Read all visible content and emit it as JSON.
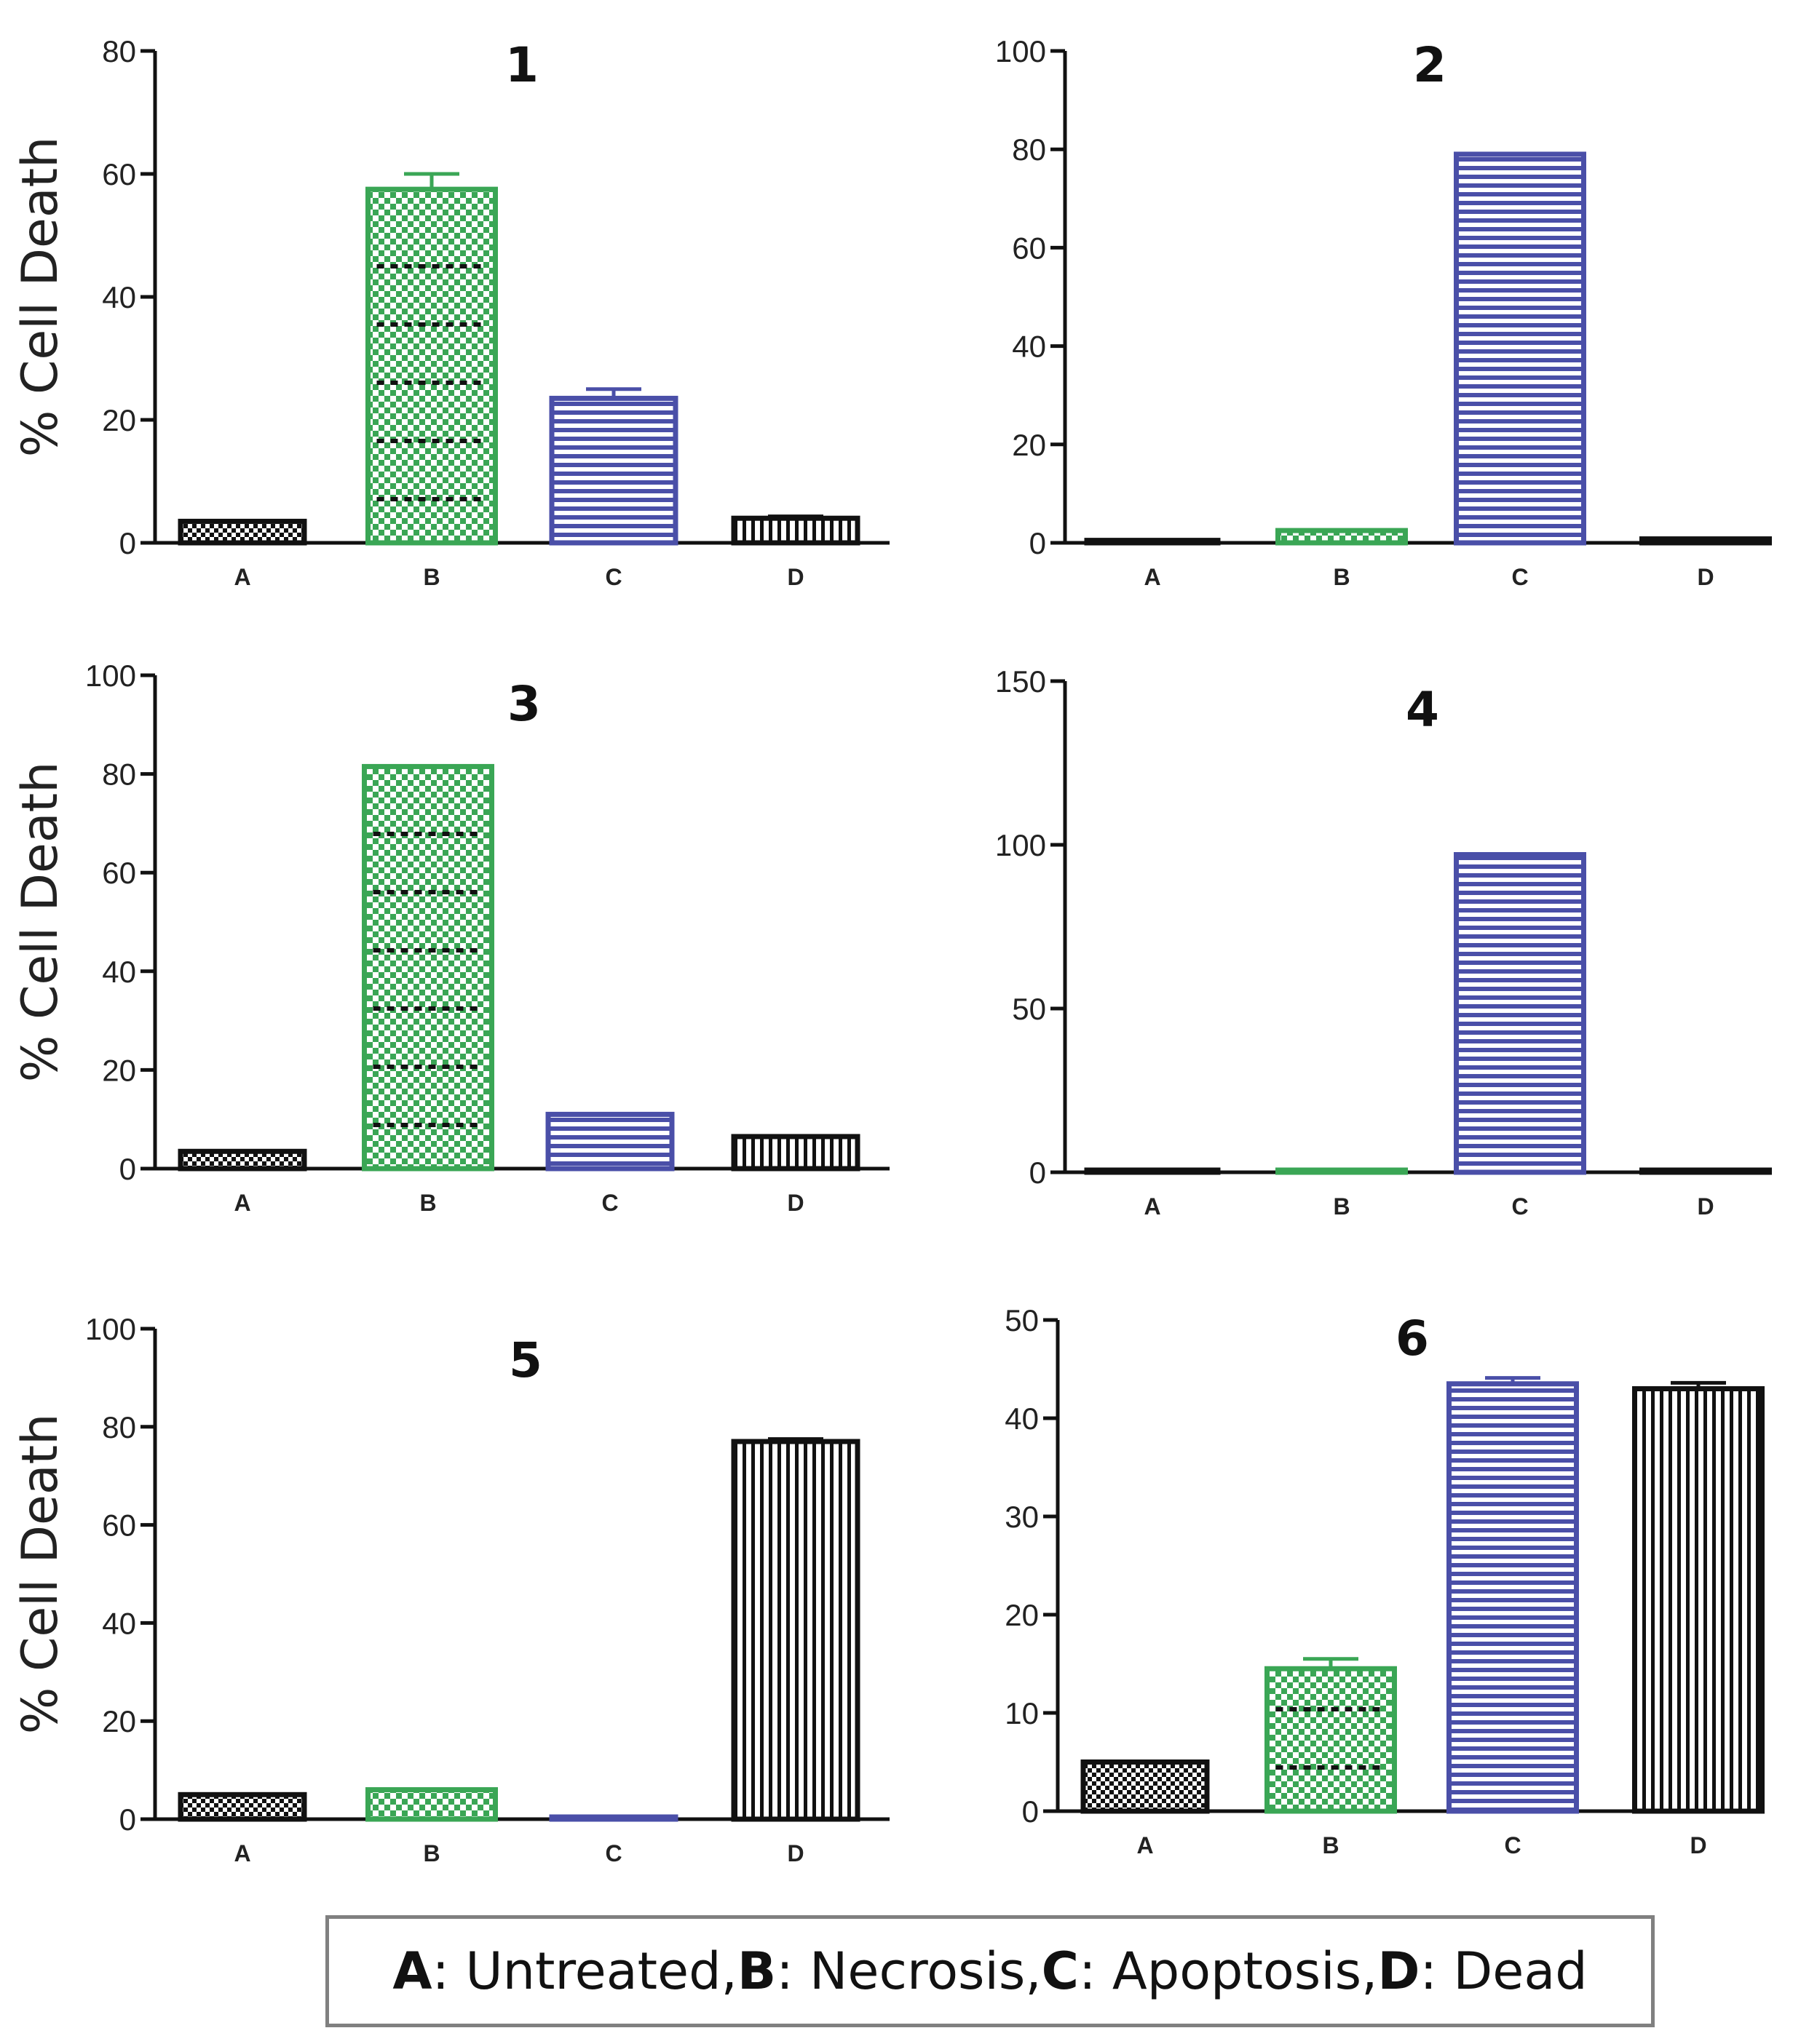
{
  "chart_data": [
    {
      "type": "bar",
      "title": "1",
      "ylabel": "% Cell Death",
      "ylim": [
        0,
        80
      ],
      "yticks": [
        0,
        20,
        40,
        60,
        80
      ],
      "categories": [
        "A",
        "B",
        "C",
        "D"
      ],
      "values": [
        3.5,
        57.5,
        23.5,
        4.0
      ],
      "errors": [
        0,
        2.5,
        1.5,
        0.3
      ]
    },
    {
      "type": "bar",
      "title": "2",
      "ylabel": "",
      "ylim": [
        0,
        100
      ],
      "yticks": [
        0,
        20,
        40,
        60,
        80,
        100
      ],
      "categories": [
        "A",
        "B",
        "C",
        "D"
      ],
      "values": [
        0.5,
        2.5,
        79,
        0.8
      ],
      "errors": [
        0,
        0,
        0,
        0
      ]
    },
    {
      "type": "bar",
      "title": "3",
      "ylabel": "% Cell Death",
      "ylim": [
        0,
        100
      ],
      "yticks": [
        0,
        20,
        40,
        60,
        80,
        100
      ],
      "categories": [
        "A",
        "B",
        "C",
        "D"
      ],
      "values": [
        3.5,
        81.5,
        11,
        6.5
      ],
      "errors": [
        0,
        0,
        0,
        0
      ]
    },
    {
      "type": "bar",
      "title": "4",
      "ylabel": "",
      "ylim": [
        0,
        150
      ],
      "yticks": [
        0,
        50,
        100,
        150
      ],
      "categories": [
        "A",
        "B",
        "C",
        "D"
      ],
      "values": [
        0.3,
        0.3,
        97,
        0.3
      ],
      "errors": [
        0,
        0,
        0,
        0
      ]
    },
    {
      "type": "bar",
      "title": "5",
      "ylabel": "% Cell Death",
      "ylim": [
        0,
        100
      ],
      "yticks": [
        0,
        20,
        40,
        60,
        80,
        100
      ],
      "categories": [
        "A",
        "B",
        "C",
        "D"
      ],
      "values": [
        5,
        6,
        0.3,
        77
      ],
      "errors": [
        0,
        0,
        0,
        0.5
      ]
    },
    {
      "type": "bar",
      "title": "6",
      "ylabel": "",
      "ylim": [
        0,
        50
      ],
      "yticks": [
        0,
        10,
        20,
        30,
        40,
        50
      ],
      "categories": [
        "A",
        "B",
        "C",
        "D"
      ],
      "values": [
        5,
        14.5,
        43.5,
        43
      ],
      "errors": [
        0,
        1,
        0.6,
        0.6
      ]
    }
  ],
  "legend": [
    {
      "key": "A",
      "sep": ": ",
      "label": "Untreated",
      "tail": ", "
    },
    {
      "key": "B",
      "sep": ": ",
      "label": "Necrosis",
      "tail": ", "
    },
    {
      "key": "C",
      "sep": ": ",
      "label": "Apoptosis",
      "tail": ", "
    },
    {
      "key": "D",
      "sep": ": ",
      "label": "Dead",
      "tail": ""
    }
  ],
  "colors": {
    "A": "#111111",
    "B": "#3aa655",
    "C": "#4a4fa8",
    "D": "#111111",
    "axis": "#111111"
  }
}
